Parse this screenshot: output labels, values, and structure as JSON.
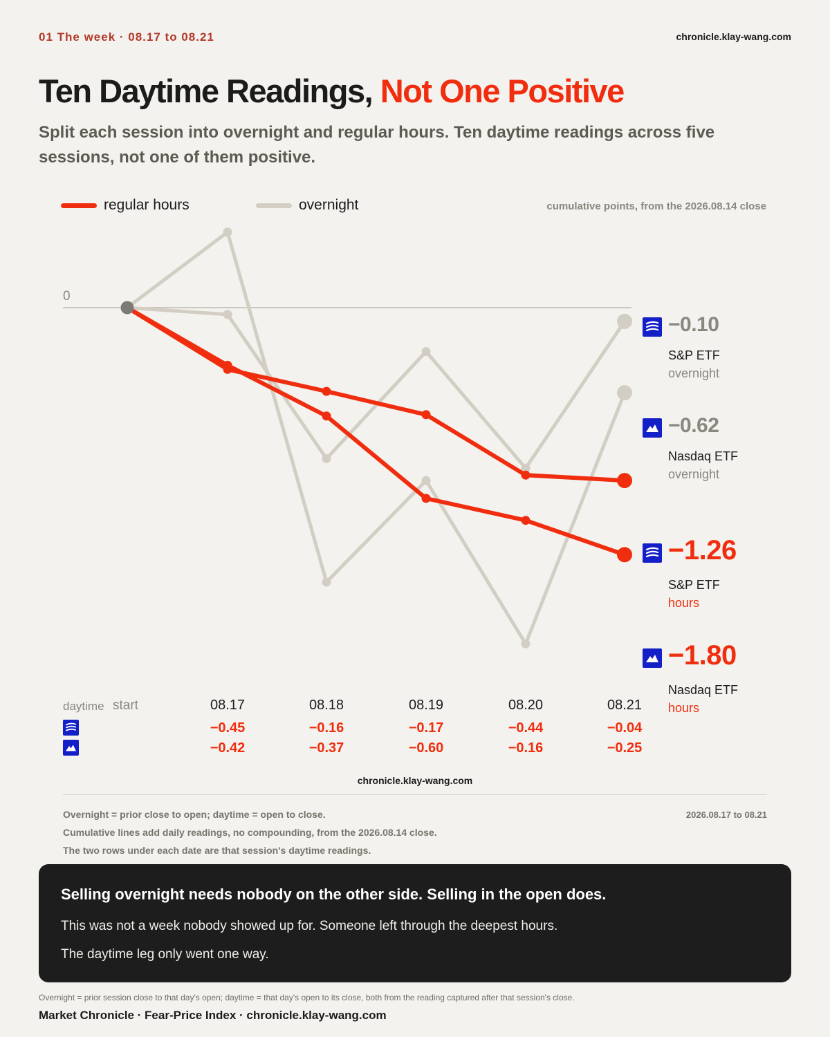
{
  "header": {
    "kicker": "01  The week · 08.17 to 08.21",
    "site": "chronicle.klay-wang.com",
    "title_main": "Ten Daytime Readings,",
    "title_highlight": "Not One Positive",
    "subtitle": "Split each session into overnight and regular hours. Ten daytime readings across five sessions, not one of them positive."
  },
  "legend": {
    "regular": "regular hours",
    "overnight": "overnight",
    "note": "cumulative points, from the 2026.08.14 close"
  },
  "colors": {
    "regular": "#f02d0e",
    "overnight": "#d3cec3",
    "start_dot": "#7d7a75",
    "logo_bg": "#1320c8"
  },
  "chart_data": {
    "type": "line",
    "x": [
      "start",
      "08.17",
      "08.18",
      "08.19",
      "08.20",
      "08.21"
    ],
    "zero_label": "0",
    "ylim": [
      -2.05,
      0.6
    ],
    "series": [
      {
        "name": "S&P ETF overnight",
        "group": "overnight",
        "values": [
          0,
          -0.05,
          -1.1,
          -0.32,
          -1.17,
          -0.1
        ]
      },
      {
        "name": "Nasdaq ETF overnight",
        "group": "overnight",
        "values": [
          0,
          0.55,
          -2.0,
          -1.26,
          -2.45,
          -0.62
        ]
      },
      {
        "name": "S&P ETF hours",
        "group": "regular",
        "values": [
          0,
          -0.45,
          -0.61,
          -0.78,
          -1.22,
          -1.26
        ]
      },
      {
        "name": "Nasdaq ETF hours",
        "group": "regular",
        "values": [
          0,
          -0.42,
          -0.79,
          -1.39,
          -1.55,
          -1.8
        ]
      }
    ]
  },
  "annotations": [
    {
      "value": "−0.10",
      "name": "S&P ETF",
      "sub": "overnight",
      "logo": "sp-logo",
      "group": "overnight"
    },
    {
      "value": "−0.62",
      "name": "Nasdaq ETF",
      "sub": "overnight",
      "logo": "nasdaq-logo",
      "group": "overnight"
    },
    {
      "value": "−1.26",
      "name": "S&P ETF",
      "sub": "hours",
      "logo": "sp-logo",
      "group": "regular"
    },
    {
      "value": "−1.80",
      "name": "Nasdaq ETF",
      "sub": "hours",
      "logo": "nasdaq-logo",
      "group": "regular"
    }
  ],
  "table": {
    "label_daytime": "daytime",
    "label_start": "start",
    "dates": [
      "08.17",
      "08.18",
      "08.19",
      "08.20",
      "08.21"
    ],
    "rows": [
      {
        "logo": "sp-logo",
        "values": [
          "−0.45",
          "−0.16",
          "−0.17",
          "−0.44",
          "−0.04"
        ]
      },
      {
        "logo": "nasdaq-logo",
        "values": [
          "−0.42",
          "−0.37",
          "−0.60",
          "−0.16",
          "−0.25"
        ]
      }
    ]
  },
  "chart_site": "chronicle.klay-wang.com",
  "notes": [
    "Overnight = prior close to open; daytime = open to close.",
    "Cumulative lines add daily readings, no compounding, from the 2026.08.14 close.",
    "The two rows under each date are that session's daytime readings."
  ],
  "notes_date": "2026.08.17 to 08.21",
  "callout": {
    "headline": "Selling overnight needs nobody on the other side. Selling in the open does.",
    "line1": "This was not a week nobody showed up for. Someone left through the deepest hours.",
    "line2": "The daytime leg only went one way."
  },
  "footer": {
    "note": "Overnight = prior session close to that day's open; daytime = that day's open to its close, both from the reading captured after that session's close.",
    "brand": "Market Chronicle · Fear-Price Index · chronicle.klay-wang.com"
  }
}
